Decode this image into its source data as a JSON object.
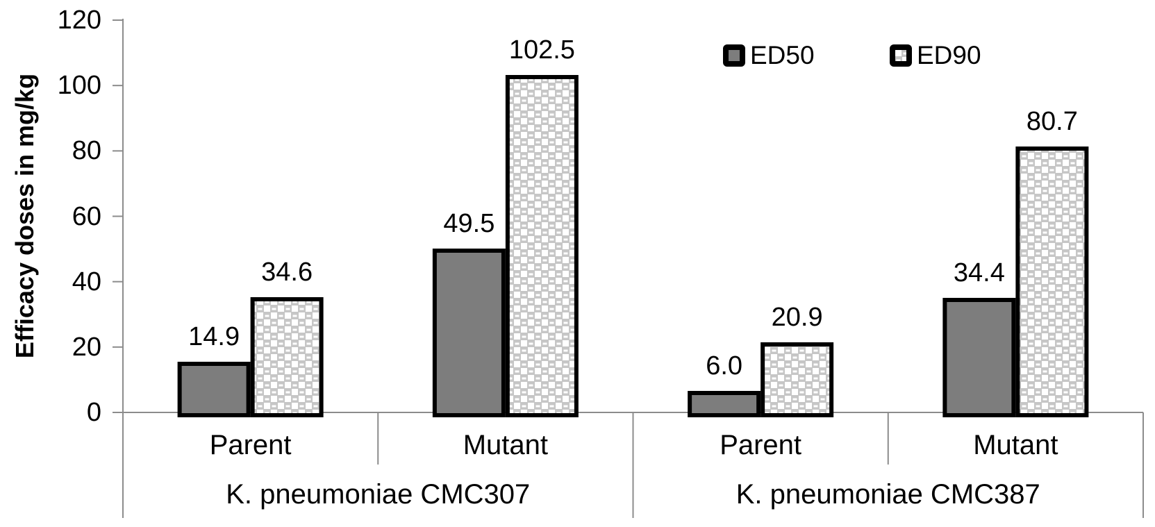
{
  "chart_data": {
    "type": "bar",
    "title": "",
    "ylabel": "Efficacy doses in mg/kg",
    "xlabel": "",
    "ylim": [
      0,
      120
    ],
    "yticks": [
      0,
      20,
      40,
      60,
      80,
      100,
      120
    ],
    "grid": false,
    "legend_position": "top-right-inside",
    "groups": [
      {
        "label": "K. pneumoniae CMC307",
        "categories": [
          "Parent",
          "Mutant"
        ]
      },
      {
        "label": "K. pneumoniae CMC387",
        "categories": [
          "Parent",
          "Mutant"
        ]
      }
    ],
    "categories": [
      "Parent (K. pneumoniae CMC307)",
      "Mutant (K. pneumoniae CMC307)",
      "Parent (K. pneumoniae CMC387)",
      "Mutant (K. pneumoniae CMC387)"
    ],
    "series": [
      {
        "name": "ED50",
        "values": [
          14.9,
          49.5,
          6.0,
          34.4
        ],
        "style": "solid",
        "fill": "#7d7d7d"
      },
      {
        "name": "ED90",
        "values": [
          34.6,
          102.5,
          20.9,
          80.7
        ],
        "style": "dotted-grid-pattern",
        "fill_base": "#c6c6c6",
        "fill_dot": "#ffffff"
      }
    ],
    "data_labels": [
      "14.9",
      "34.6",
      "49.5",
      "102.5",
      "6.0",
      "20.9",
      "34.4",
      "80.7"
    ],
    "data_label_decimals": 1,
    "bar_outline_color": "#000000",
    "axis_color": "#8c8c8c",
    "text_color": "#000000"
  },
  "legend": {
    "items": [
      {
        "label": "ED50"
      },
      {
        "label": "ED90"
      }
    ]
  }
}
